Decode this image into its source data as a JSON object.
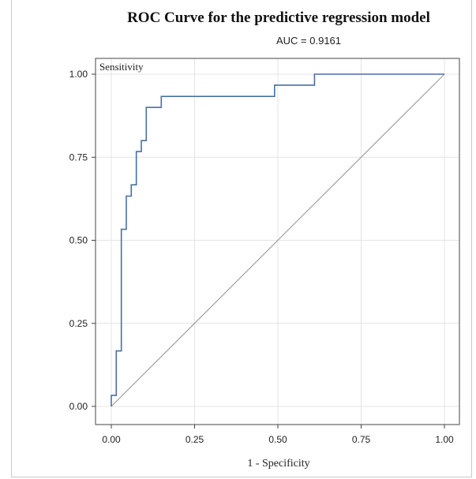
{
  "chart_data": {
    "type": "line",
    "title": "ROC Curve for the predictive regression model",
    "subtitle": "AUC  = 0.9161",
    "xlabel": "1 - Specificity",
    "ylabel": "Sensitivity",
    "xlim": [
      0,
      1
    ],
    "ylim": [
      0,
      1
    ],
    "x_ticks": [
      "0.00",
      "0.25",
      "0.50",
      "0.75",
      "1.00"
    ],
    "y_ticks": [
      "0.00",
      "0.25",
      "0.50",
      "0.75",
      "1.00"
    ],
    "x_tick_values": [
      0,
      0.25,
      0.5,
      0.75,
      1
    ],
    "y_tick_values": [
      0,
      0.25,
      0.5,
      0.75,
      1
    ],
    "grid": true,
    "series": [
      {
        "color": "#4a6fa5",
        "x": [
          0.0,
          0.0,
          0.015,
          0.015,
          0.03,
          0.03,
          0.045,
          0.045,
          0.06,
          0.06,
          0.075,
          0.075,
          0.09,
          0.09,
          0.105,
          0.105,
          0.15,
          0.15,
          0.49,
          0.49,
          0.61,
          0.61,
          1.0
        ],
        "y": [
          0.0,
          0.033,
          0.033,
          0.167,
          0.167,
          0.533,
          0.533,
          0.633,
          0.633,
          0.667,
          0.667,
          0.767,
          0.767,
          0.8,
          0.8,
          0.9,
          0.9,
          0.933,
          0.933,
          0.967,
          0.967,
          1.0,
          1.0
        ]
      },
      {
        "color": "#a0a0a0",
        "x": [
          0,
          1
        ],
        "y": [
          0,
          1
        ]
      }
    ]
  }
}
